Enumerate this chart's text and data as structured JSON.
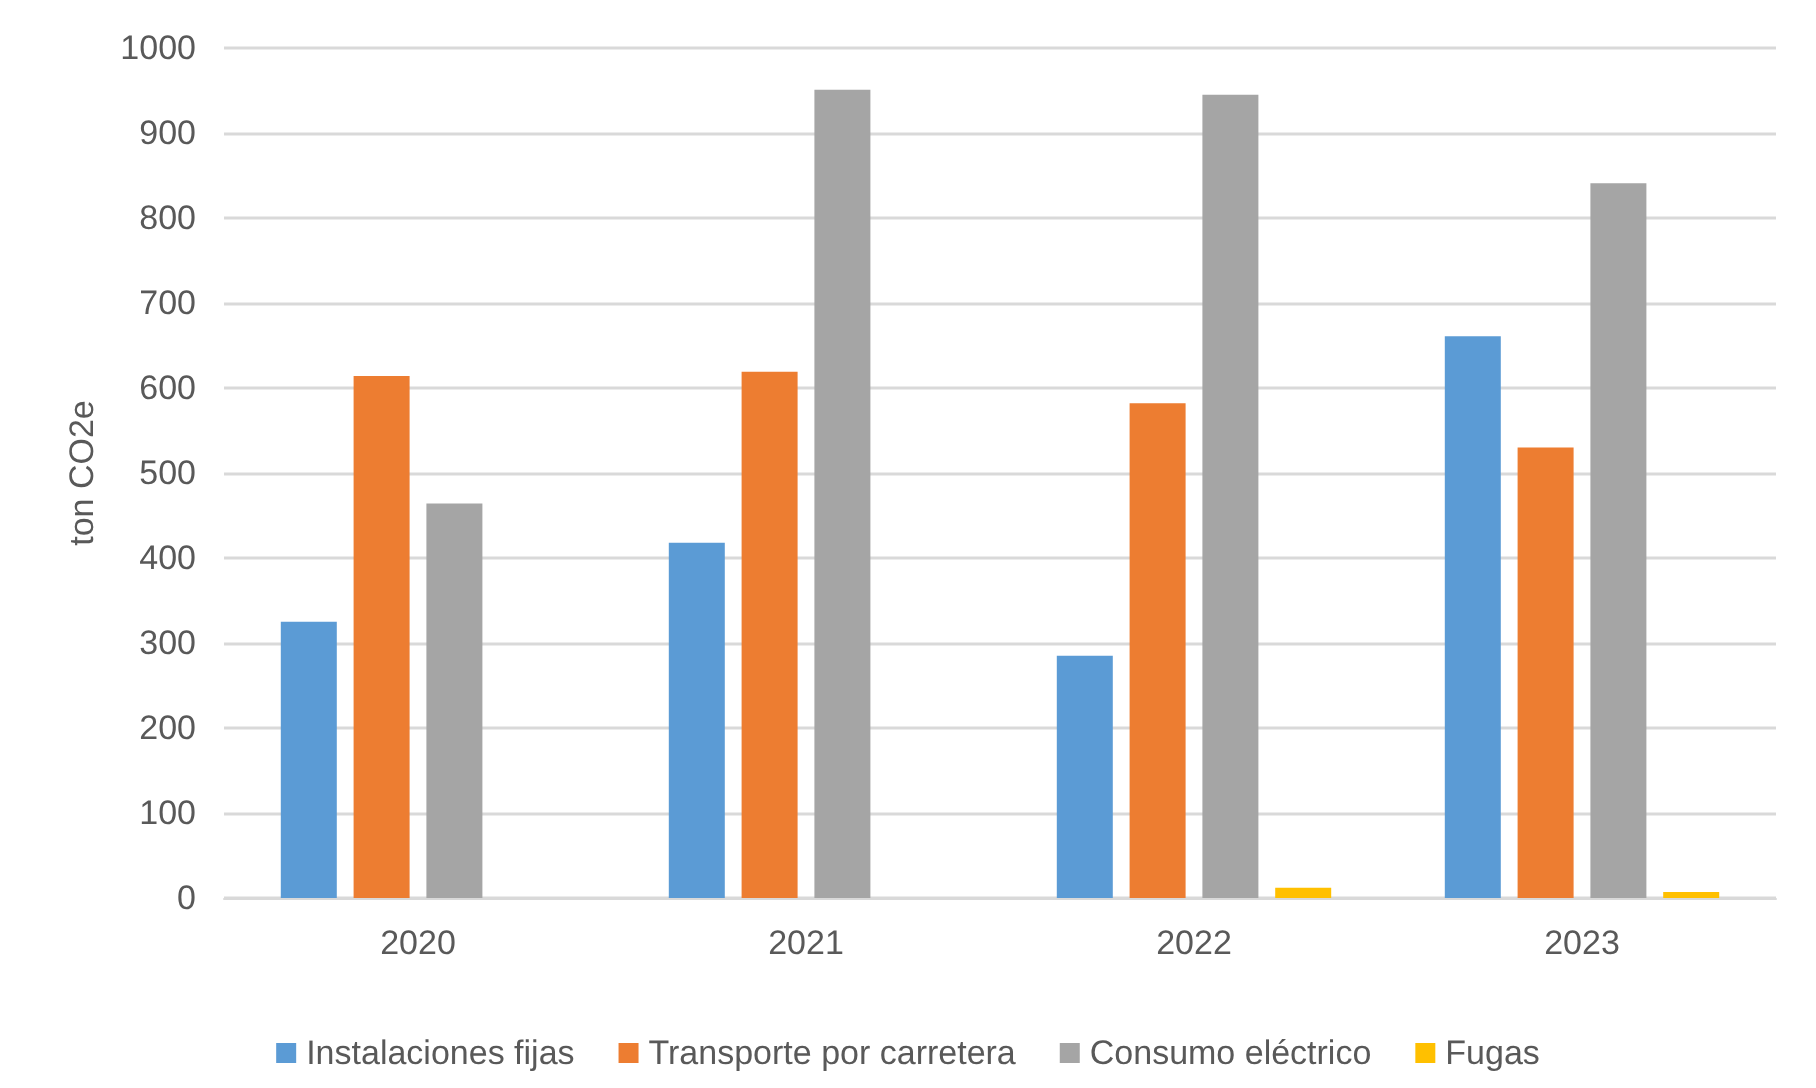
{
  "chart_data": {
    "type": "bar",
    "ylabel": "ton CO2e",
    "categories": [
      "2020",
      "2021",
      "2022",
      "2023"
    ],
    "series": [
      {
        "name": "Instalaciones fijas",
        "color": "#5b9bd5",
        "values": [
          325,
          418,
          285,
          661
        ]
      },
      {
        "name": "Transporte por carretera",
        "color": "#ed7d31",
        "values": [
          614,
          619,
          582,
          530
        ]
      },
      {
        "name": "Consumo eléctrico",
        "color": "#a5a5a5",
        "values": [
          464,
          951,
          945,
          841
        ]
      },
      {
        "name": "Fugas",
        "color": "#ffc000",
        "values": [
          0,
          0,
          12,
          7
        ]
      }
    ],
    "ylim": [
      0,
      1000
    ],
    "yticks": [
      0,
      100,
      200,
      300,
      400,
      500,
      600,
      700,
      800,
      900,
      1000
    ],
    "grid": "y",
    "legend": "bottom"
  }
}
